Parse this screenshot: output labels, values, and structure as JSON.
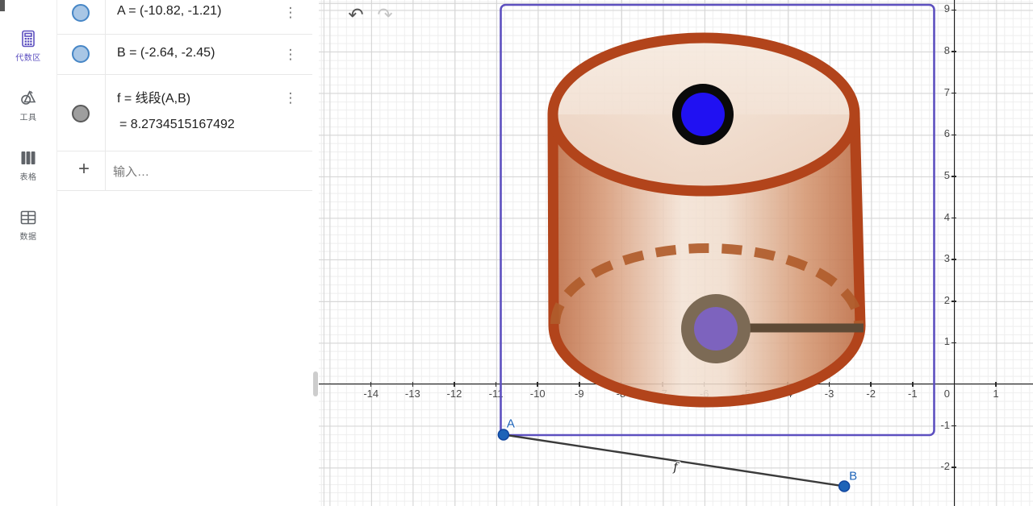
{
  "colors": {
    "accent": "#5D50C0",
    "point-blue": "#1D63B8",
    "marble-fill": "#A8C6E5",
    "marble-border": "#4686C6",
    "cyl-border": "#B2441B",
    "cyl-dash": "#B05C2B",
    "stick": "#5E4A36",
    "ring": "#7C6A55",
    "point-purple": "#7D63BE",
    "point-top-blue": "#2011F2",
    "point-top-ring": "#0A0A0A",
    "segment": "#3a3a3a"
  },
  "sidebar": {
    "items": [
      {
        "label": "代数区",
        "icon": "calculator-icon",
        "active": true
      },
      {
        "label": "工具",
        "icon": "tools-icon",
        "active": false
      },
      {
        "label": "表格",
        "icon": "spreadsheet-icon",
        "active": false
      },
      {
        "label": "数据",
        "icon": "data-icon",
        "active": false
      }
    ]
  },
  "algebra": {
    "rows": [
      {
        "name": "A",
        "text": "A = (-10.82, -1.21)",
        "marble": "blue"
      },
      {
        "name": "B",
        "text": "B = (-2.64, -2.45)",
        "marble": "blue"
      },
      {
        "name": "f",
        "text": "f = 线段(A,B)",
        "value": "= 8.2734515167492",
        "marble": "gray"
      }
    ],
    "input_placeholder": "输入…",
    "menu_icon": "⋮",
    "add_icon": "+"
  },
  "toolbar": {
    "undo": "↶",
    "redo": "↷"
  },
  "graphics": {
    "x_ticks": [
      -14,
      -13,
      -12,
      -11,
      -10,
      -9,
      -8,
      -7,
      -6,
      -5,
      -4,
      -3,
      -2,
      -1,
      1
    ],
    "y_ticks": [
      9,
      8,
      7,
      6,
      5,
      4,
      3,
      2,
      1,
      -1,
      -2
    ],
    "origin_label": "0",
    "points": {
      "A": {
        "label": "A",
        "x": -10.82,
        "y": -1.21
      },
      "B": {
        "label": "B",
        "x": -2.64,
        "y": -2.45
      }
    },
    "segment_label": "f"
  }
}
